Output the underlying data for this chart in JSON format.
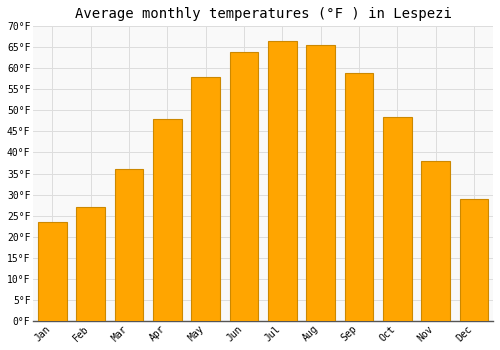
{
  "title": "Average monthly temperatures (°F ) in Lespezi",
  "months": [
    "Jan",
    "Feb",
    "Mar",
    "Apr",
    "May",
    "Jun",
    "Jul",
    "Aug",
    "Sep",
    "Oct",
    "Nov",
    "Dec"
  ],
  "values": [
    23.5,
    27,
    36,
    48,
    58,
    64,
    66.5,
    65.5,
    59,
    48.5,
    38,
    29
  ],
  "bar_color": "#FFA500",
  "bar_edge_color": "#CC8800",
  "ylim": [
    0,
    70
  ],
  "yticks": [
    0,
    5,
    10,
    15,
    20,
    25,
    30,
    35,
    40,
    45,
    50,
    55,
    60,
    65,
    70
  ],
  "ylabel_suffix": "°F",
  "grid_color": "#dddddd",
  "background_color": "#ffffff",
  "plot_bg_color": "#f9f9f9",
  "title_fontsize": 10,
  "tick_fontsize": 7,
  "font_family": "monospace",
  "bar_width": 0.75
}
